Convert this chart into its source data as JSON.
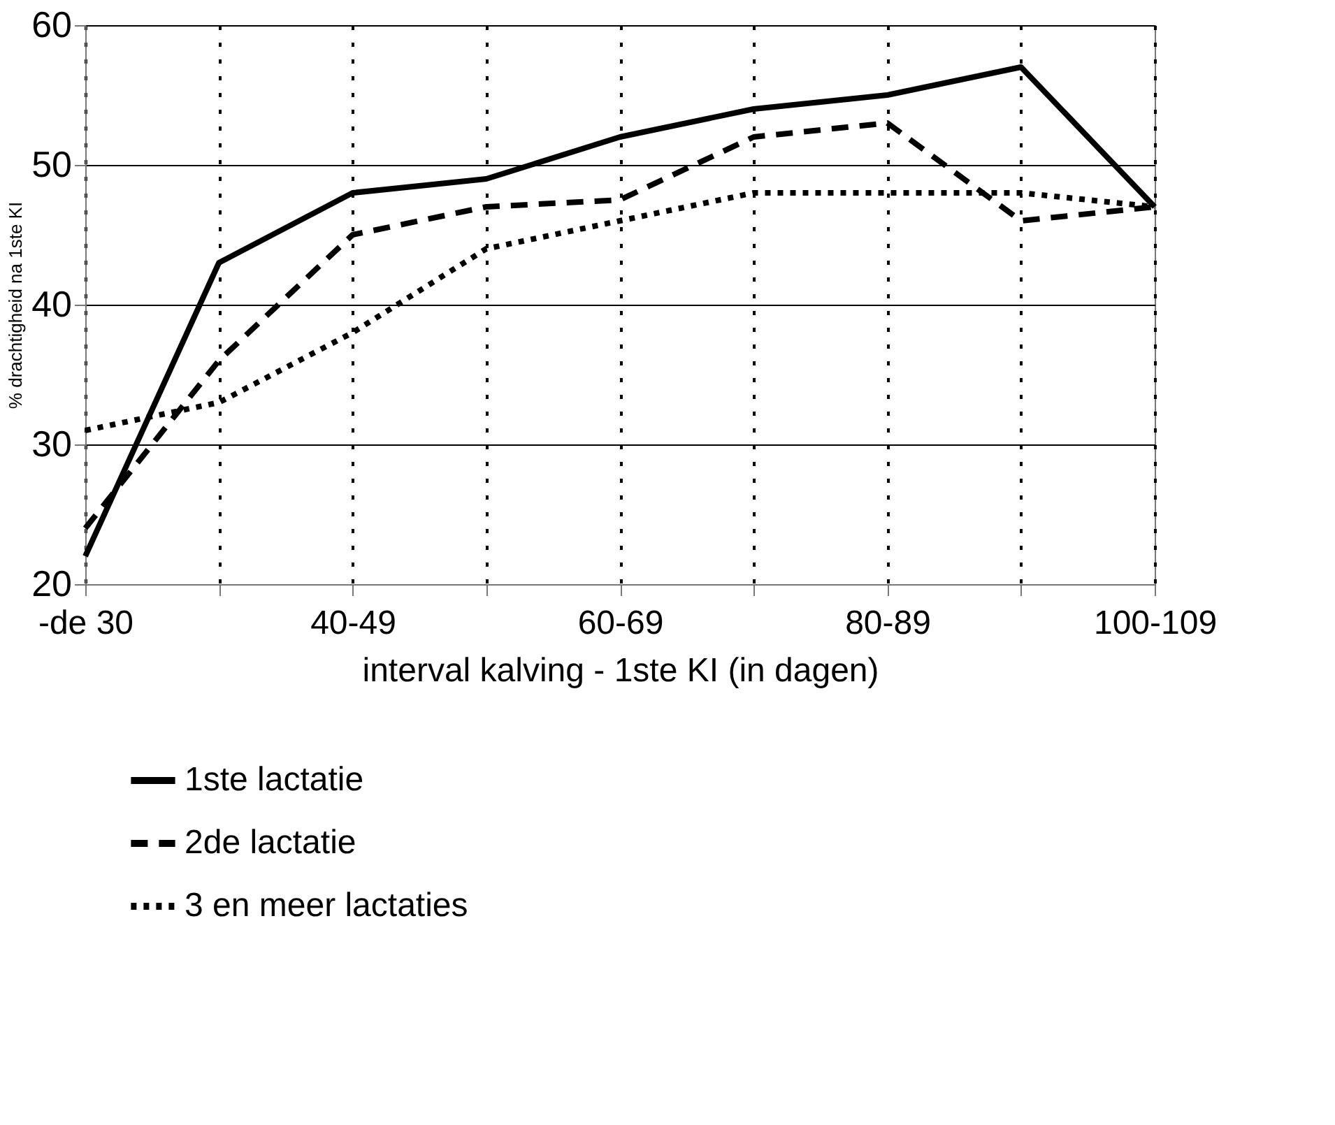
{
  "chart_data": {
    "type": "line",
    "xlabel": "interval kalving - 1ste KI (in dagen)",
    "ylabel": "% drachtigheid na 1ste KI",
    "categories": [
      "-de 30",
      null,
      "40-49",
      null,
      "60-69",
      null,
      "80-89",
      null,
      "100-109"
    ],
    "ylim": [
      20,
      60
    ],
    "yticks": [
      20,
      30,
      40,
      50,
      60
    ],
    "grid": true,
    "legend": "bottom",
    "marker": "none",
    "series": [
      {
        "name": "1ste lactatie",
        "color": "#000000",
        "line_style": "solid",
        "values": [
          22,
          43,
          48,
          49,
          52,
          54,
          55,
          57,
          47
        ]
      },
      {
        "name": "2de lactatie",
        "color": "#000000",
        "line_style": "dashed",
        "values": [
          24,
          36,
          45,
          47,
          47.5,
          52,
          53,
          46,
          47
        ]
      },
      {
        "name": "3 en meer lactaties",
        "color": "#000000",
        "line_style": "dotted",
        "values": [
          31,
          33,
          38,
          44,
          46,
          48,
          48,
          48,
          47
        ]
      }
    ]
  }
}
